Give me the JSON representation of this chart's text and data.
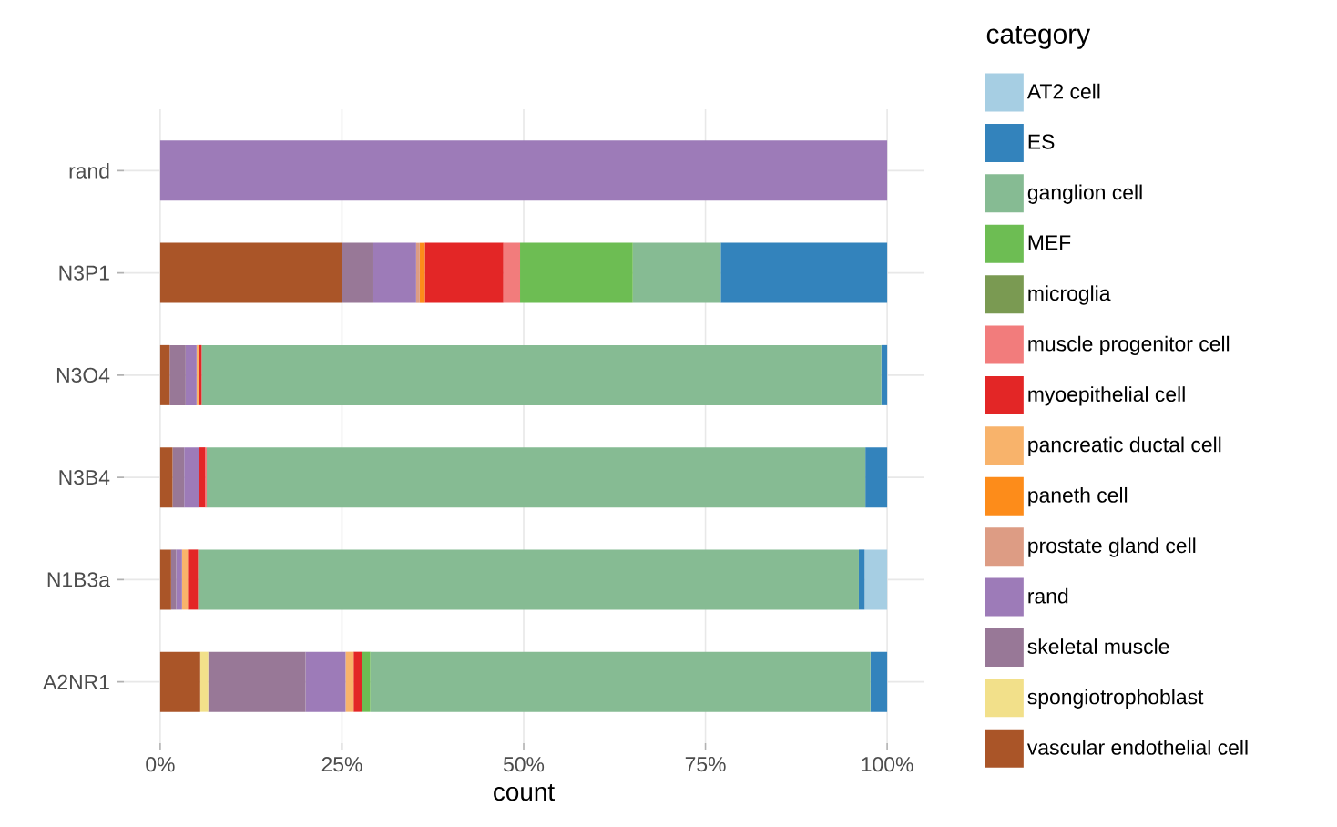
{
  "chart_data": {
    "type": "bar",
    "orientation": "horizontal",
    "stacked": true,
    "xlabel": "count",
    "legend_title": "category",
    "legend": "right",
    "grid": true,
    "categories": [
      "rand",
      "N3P1",
      "N3O4",
      "N3B4",
      "N1B3a",
      "A2NR1"
    ],
    "xlim": [
      -5,
      105
    ],
    "xticks": [
      {
        "value": 0,
        "label": "0%"
      },
      {
        "value": 25,
        "label": "25%"
      },
      {
        "value": 50,
        "label": "50%"
      },
      {
        "value": 75,
        "label": "75%"
      },
      {
        "value": 100,
        "label": "100%"
      }
    ],
    "series": [
      {
        "name": "vascular endothelial cell",
        "color": "#aa5528",
        "values": [
          0,
          25,
          1.3,
          1.7,
          1.5,
          5.5
        ]
      },
      {
        "name": "spongiotrophoblast",
        "color": "#f2e08a",
        "values": [
          0,
          0,
          0,
          0,
          0,
          1.1
        ]
      },
      {
        "name": "skeletal muscle",
        "color": "#987897",
        "values": [
          0,
          4.2,
          2.2,
          1.6,
          0.7,
          13.4
        ]
      },
      {
        "name": "rand",
        "color": "#9d7bb8",
        "values": [
          100,
          6.0,
          1.5,
          2.1,
          0.8,
          5.5
        ]
      },
      {
        "name": "prostate gland cell",
        "color": "#dd9c84",
        "values": [
          0,
          0.5,
          0,
          0,
          0,
          0
        ]
      },
      {
        "name": "paneth cell",
        "color": "#fd8c1a",
        "values": [
          0,
          0.7,
          0,
          0,
          0,
          0
        ]
      },
      {
        "name": "pancreatic ductal cell",
        "color": "#f8b36b",
        "values": [
          0,
          0,
          0.3,
          0,
          0.8,
          1.1
        ]
      },
      {
        "name": "myoepithelial cell",
        "color": "#e32626",
        "values": [
          0,
          10.8,
          0.4,
          0.8,
          1.4,
          1.1
        ]
      },
      {
        "name": "muscle progenitor cell",
        "color": "#f27c7c",
        "values": [
          0,
          2.3,
          0,
          0.2,
          0,
          0
        ]
      },
      {
        "name": "microglia",
        "color": "#7a9a52",
        "values": [
          0,
          0,
          0,
          0,
          0,
          0
        ]
      },
      {
        "name": "MEF",
        "color": "#6dbd53",
        "values": [
          0,
          15.5,
          0,
          0,
          0,
          1.2
        ]
      },
      {
        "name": "ganglion cell",
        "color": "#86bb93",
        "values": [
          0,
          12.1,
          93.5,
          90.6,
          90.9,
          68.8
        ]
      },
      {
        "name": "ES",
        "color": "#3383bc",
        "values": [
          0,
          22.9,
          0.8,
          3.0,
          0.8,
          2.3
        ]
      },
      {
        "name": "AT2 cell",
        "color": "#a6cee3",
        "values": [
          0,
          0,
          0,
          0,
          3.1,
          0
        ]
      }
    ]
  }
}
